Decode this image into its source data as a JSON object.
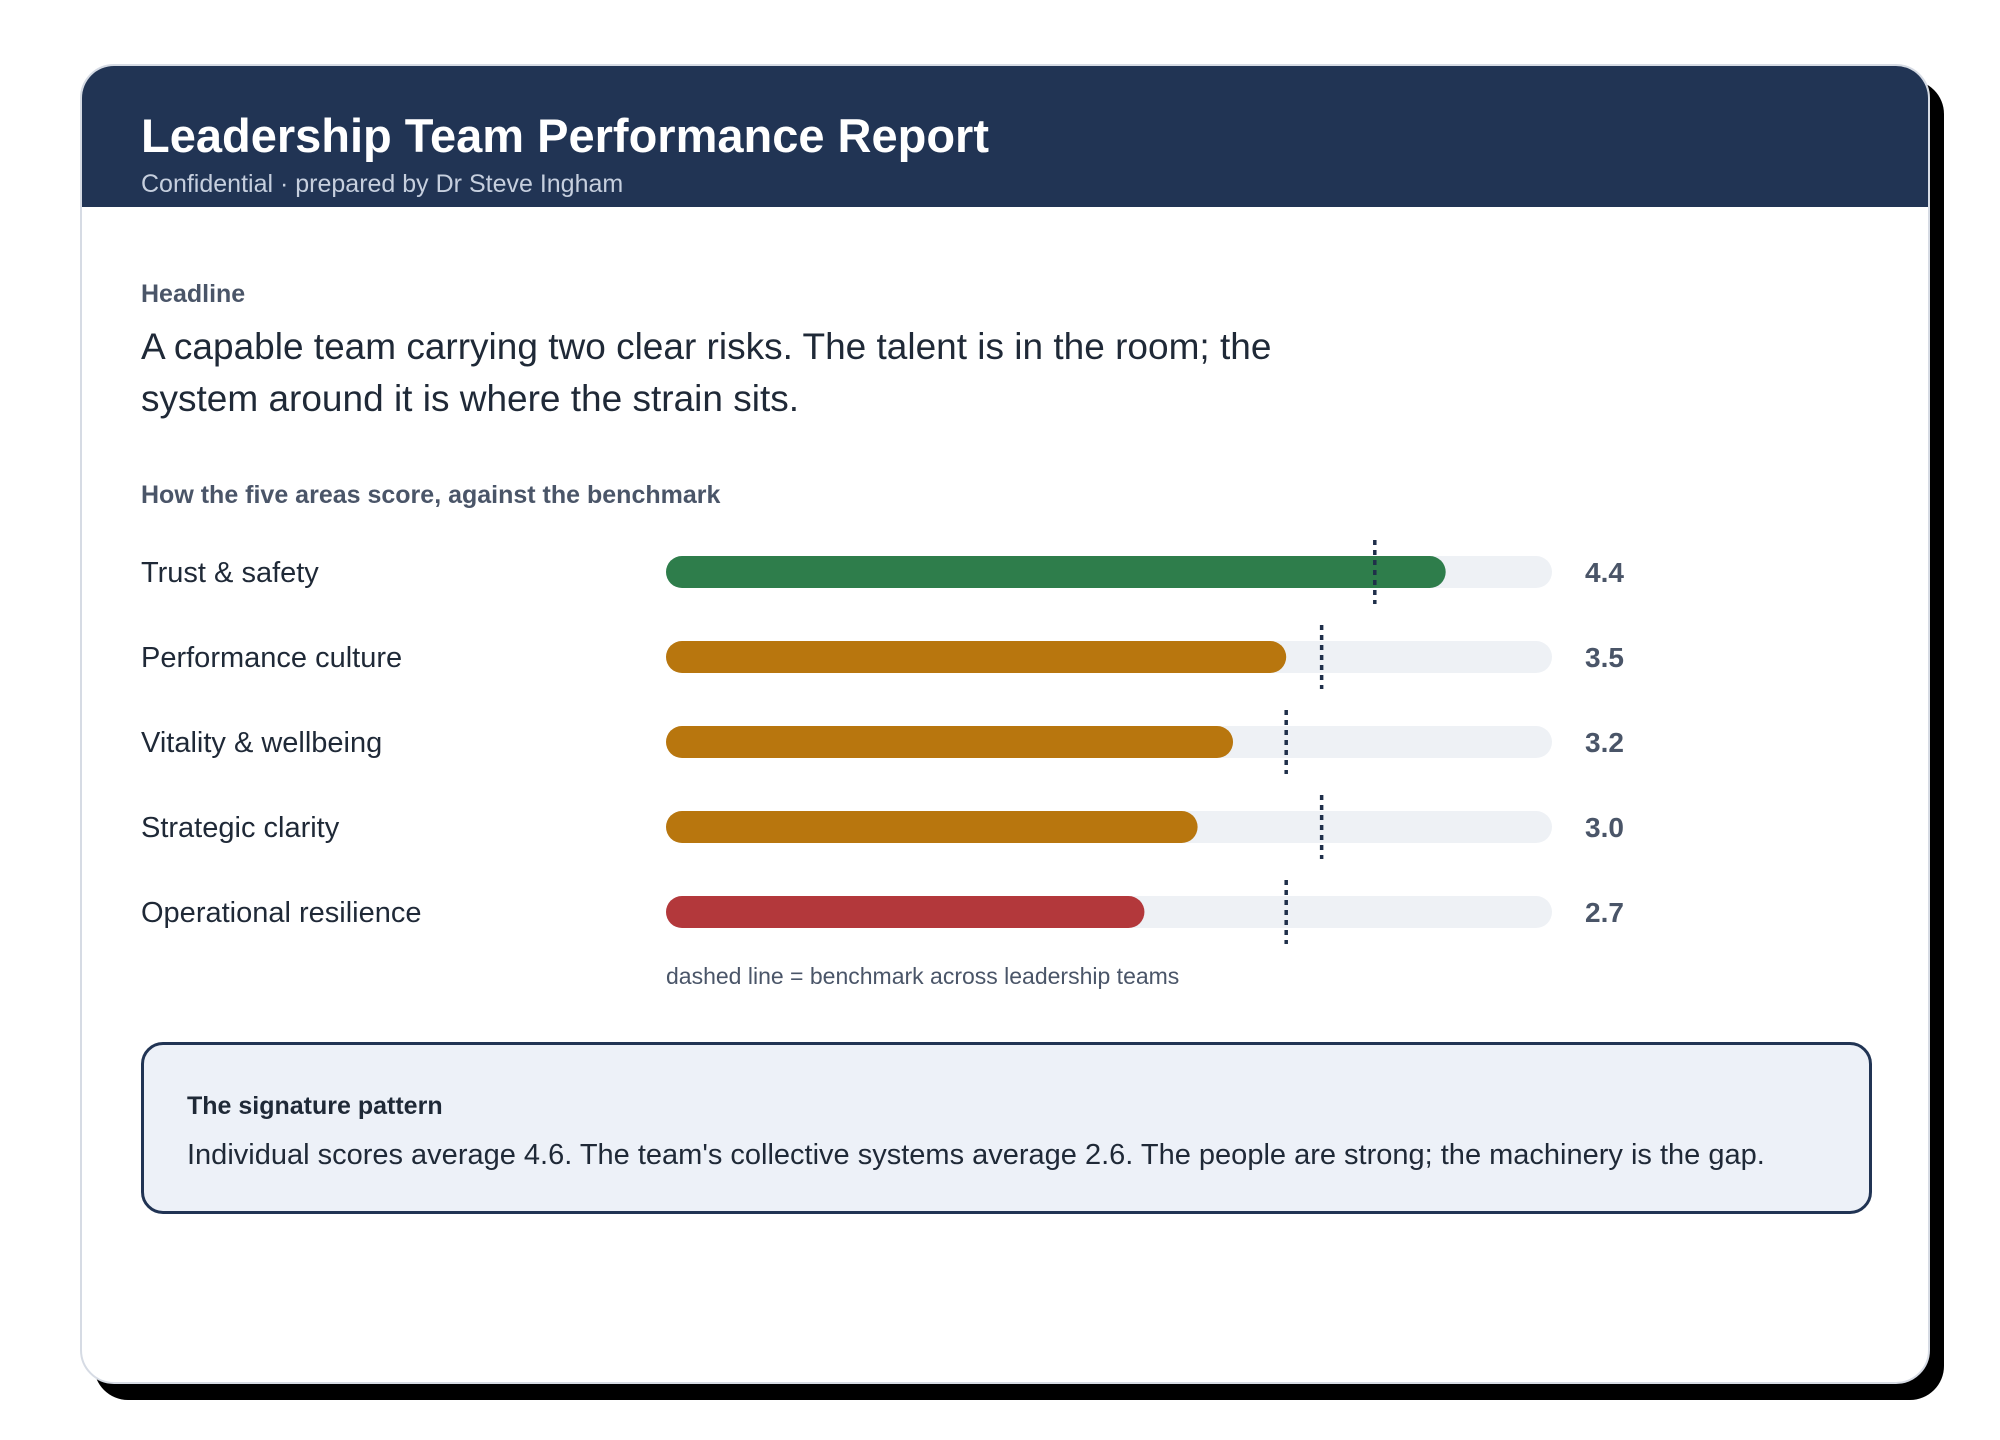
{
  "report": {
    "title": "Leadership Team Performance Report",
    "subtitle": "Confidential · prepared by Dr Steve Ingham"
  },
  "headline": {
    "label": "Headline",
    "text": "A capable team carrying two clear risks. The talent is in the room; the system around it is where the strain sits."
  },
  "chart_data": {
    "type": "bar",
    "orientation": "horizontal",
    "title": "How the five areas score, against the benchmark",
    "categories": [
      "Trust & safety",
      "Performance culture",
      "Vitality & wellbeing",
      "Strategic clarity",
      "Operational resilience"
    ],
    "values": [
      4.4,
      3.5,
      3.2,
      3.0,
      2.7
    ],
    "value_labels": [
      "4.4",
      "3.5",
      "3.2",
      "3.0",
      "2.7"
    ],
    "benchmarks": [
      4.0,
      3.7,
      3.5,
      3.7,
      3.5
    ],
    "xlim": [
      0,
      5
    ],
    "colors": [
      "#2e7d4b",
      "#b8760e",
      "#b8760e",
      "#b8760e",
      "#b3383b"
    ],
    "track_color": "#eef1f5",
    "benchmark_color": "#1f2f4a",
    "note": "dashed line = benchmark across leadership teams",
    "grid": false,
    "legend": "none"
  },
  "signature": {
    "title": "The signature pattern",
    "text": "Individual scores average 4.6. The team's collective systems average 2.6. The people are strong; the machinery is the gap."
  },
  "colors": {
    "header_bg": "#213454",
    "panel_bg": "#edf1f8",
    "panel_border": "#213454",
    "shadow": "#000000"
  }
}
